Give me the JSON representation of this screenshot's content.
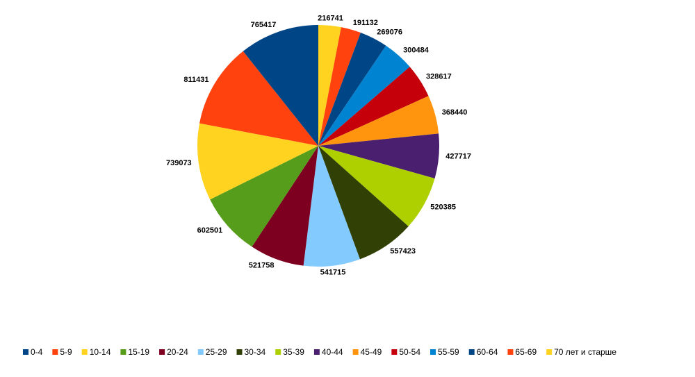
{
  "chart_data": {
    "type": "pie",
    "title": "",
    "legend_position": "bottom",
    "start_angle_deg": 0,
    "direction": "clockwise",
    "slices": [
      {
        "label": "70 лет и старше",
        "value": 216741,
        "color": "#ffd320"
      },
      {
        "label": "65-69",
        "value": 191132,
        "color": "#ff420e"
      },
      {
        "label": "60-64",
        "value": 269076,
        "color": "#004586"
      },
      {
        "label": "55-59",
        "value": 300484,
        "color": "#0084d1"
      },
      {
        "label": "50-54",
        "value": 328617,
        "color": "#c5000b"
      },
      {
        "label": "45-49",
        "value": 368440,
        "color": "#ff950e"
      },
      {
        "label": "40-44",
        "value": 427717,
        "color": "#4b1f6f"
      },
      {
        "label": "35-39",
        "value": 520385,
        "color": "#aecf00"
      },
      {
        "label": "30-34",
        "value": 557423,
        "color": "#314004"
      },
      {
        "label": "25-29",
        "value": 541715,
        "color": "#83caff"
      },
      {
        "label": "20-24",
        "value": 521758,
        "color": "#7e0021"
      },
      {
        "label": "15-19",
        "value": 602501,
        "color": "#579d1c"
      },
      {
        "label": "10-14",
        "value": 739073,
        "color": "#ffd320"
      },
      {
        "label": "5-9",
        "value": 811431,
        "color": "#ff420e"
      },
      {
        "label": "0-4",
        "value": 765417,
        "color": "#004586"
      }
    ],
    "legend_order": [
      "0-4",
      "5-9",
      "10-14",
      "15-19",
      "20-24",
      "25-29",
      "30-34",
      "35-39",
      "40-44",
      "45-49",
      "50-54",
      "55-59",
      "60-64",
      "65-69",
      "70 лет и старше"
    ]
  }
}
